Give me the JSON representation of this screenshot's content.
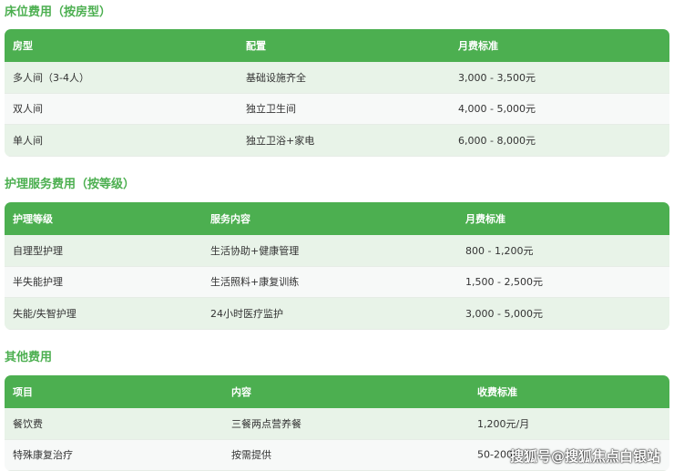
{
  "sections": [
    {
      "title": "床位费用（按房型）",
      "headers": [
        "房型",
        "配置",
        "月费标准"
      ],
      "rows": [
        [
          "多人间（3-4人）",
          "基础设施齐全",
          "3,000 - 3,500元"
        ],
        [
          "双人间",
          "独立卫生间",
          "4,000 - 5,000元"
        ],
        [
          "单人间",
          "独立卫浴+家电",
          "6,000 - 8,000元"
        ]
      ]
    },
    {
      "title": "护理服务费用（按等级）",
      "headers": [
        "护理等级",
        "服务内容",
        "月费标准"
      ],
      "rows": [
        [
          "自理型护理",
          "生活协助+健康管理",
          "800 - 1,200元"
        ],
        [
          "半失能护理",
          "生活照料+康复训练",
          "1,500 - 2,500元"
        ],
        [
          "失能/失智护理",
          "24小时医疗监护",
          "3,000 - 5,000元"
        ]
      ]
    },
    {
      "title": "其他费用",
      "headers": [
        "项目",
        "内容",
        "收费标准"
      ],
      "rows": [
        [
          "餐饮费",
          "三餐两点营养餐",
          "1,200元/月"
        ],
        [
          "特殊康复治疗",
          "按需提供",
          "50-200"
        ]
      ]
    }
  ],
  "watermark": "搜狐号@搜狐焦点白银站",
  "colors": {
    "accent": "#4caf50"
  }
}
